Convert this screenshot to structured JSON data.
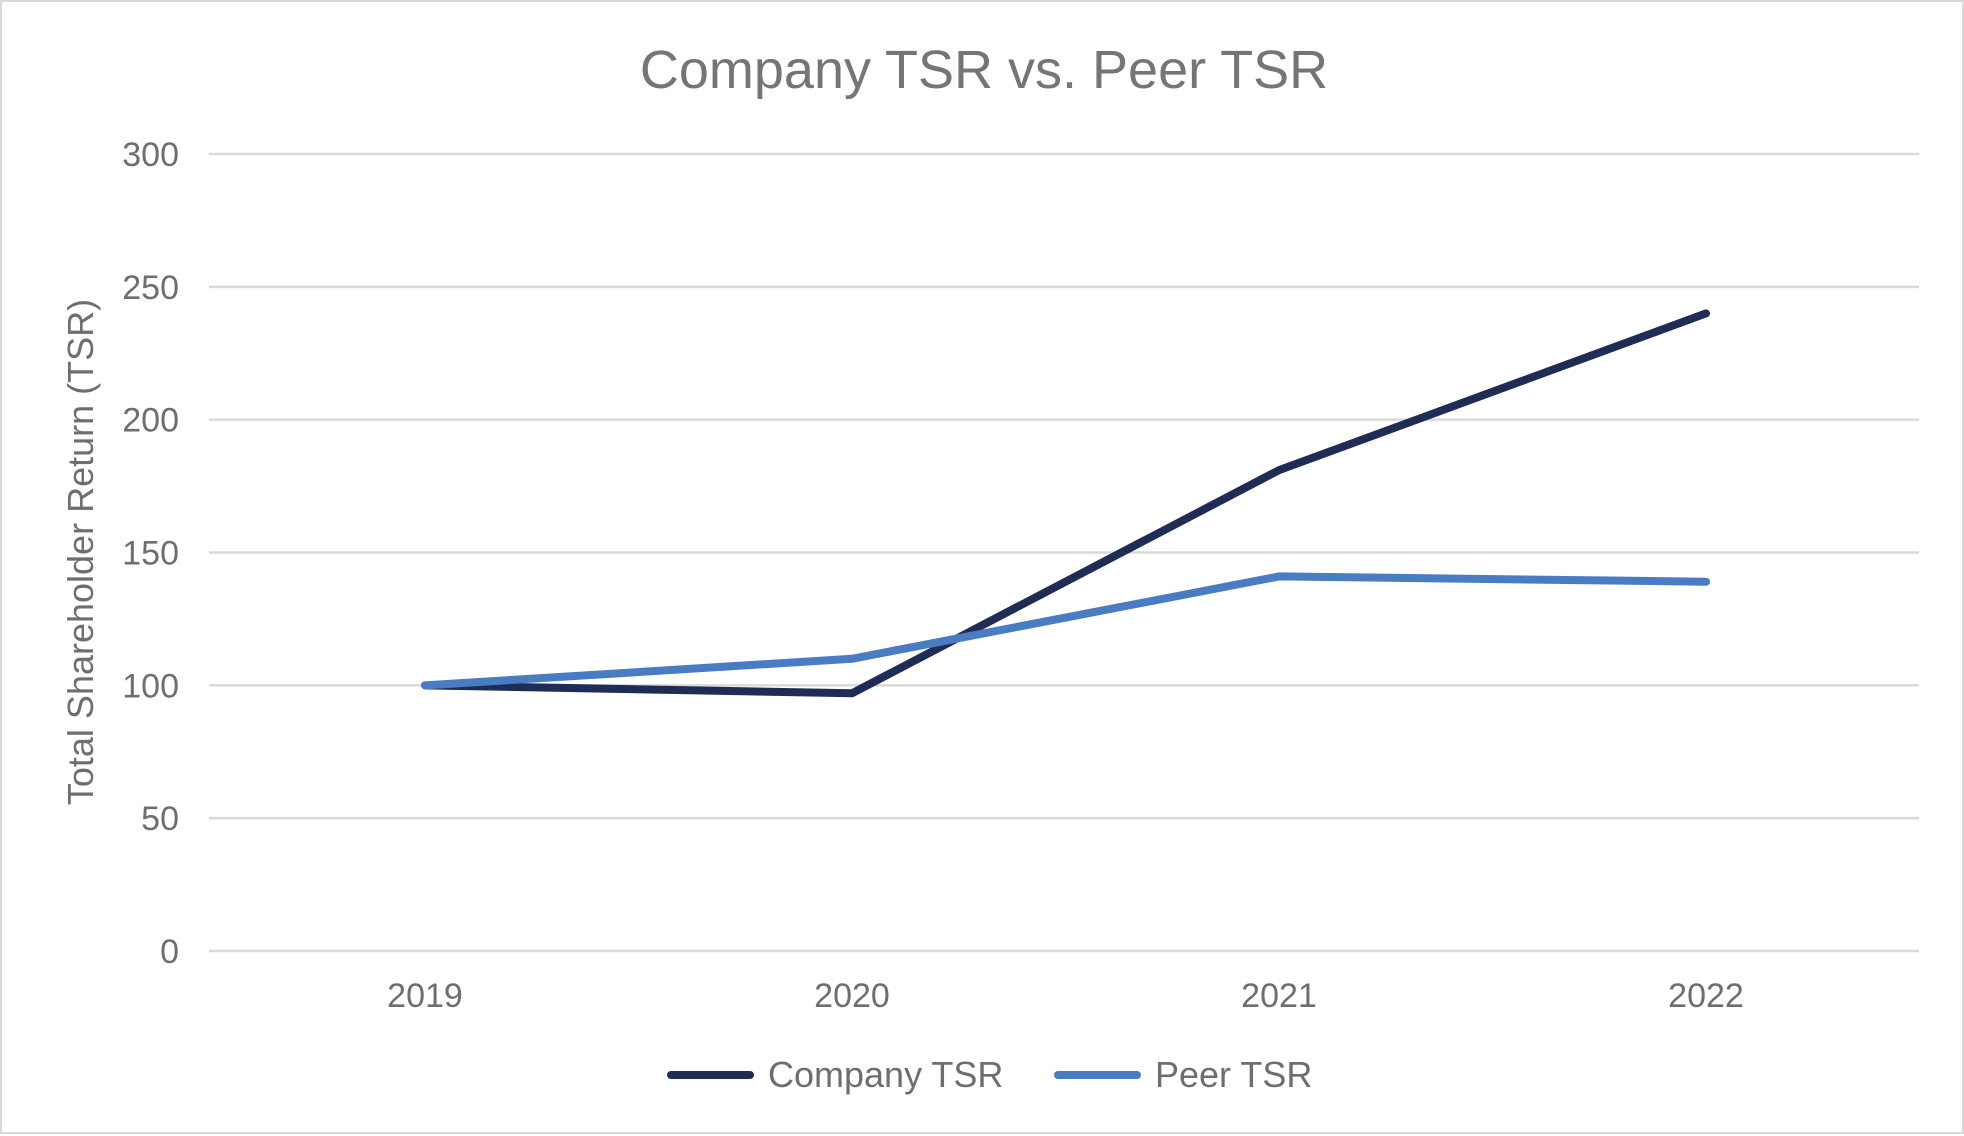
{
  "chart_data": {
    "type": "line",
    "title": "Company TSR vs. Peer TSR",
    "xlabel": "",
    "ylabel": "Total Shareholder Return (TSR)",
    "categories": [
      "2019",
      "2020",
      "2021",
      "2022"
    ],
    "ylim": [
      0,
      300
    ],
    "yticks": [
      0,
      50,
      100,
      150,
      200,
      250,
      300
    ],
    "ytick_labels": [
      "0",
      "50",
      "100",
      "150",
      "200",
      "250",
      "300"
    ],
    "grid": true,
    "legend_position": "bottom",
    "series": [
      {
        "name": "Company TSR",
        "values": [
          100,
          97,
          181,
          240
        ],
        "color": "#1f2d56"
      },
      {
        "name": "Peer TSR",
        "values": [
          100,
          110,
          141,
          139
        ],
        "color": "#4a7cc4"
      }
    ]
  }
}
